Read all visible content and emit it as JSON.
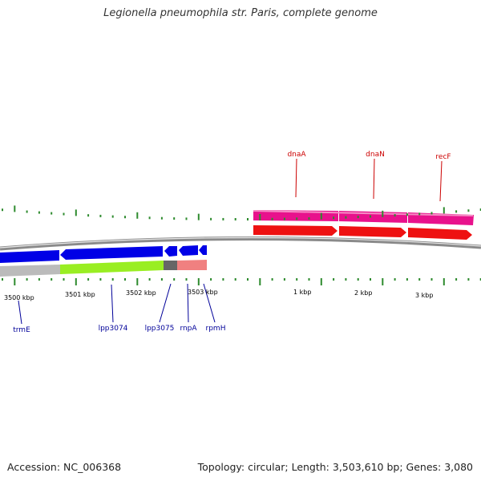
{
  "title": "Legionella pneumophila str. Paris, complete genome",
  "accession": "Accession: NC_006368",
  "summary": "Topology: circular; Length: 3,503,610 bp; Genes: 3,080",
  "colors": {
    "backbone": "#8a8a8a",
    "tick": "#2e8b2e",
    "forward_cds": "#e8128c",
    "reverse_cds": "#0000e6",
    "rna": "#ee1111",
    "gene_label_fwd": "#cc0000",
    "gene_label_rev": "#000099",
    "go_green": "#99ee22",
    "go_grey": "#bbbbbb",
    "go_pink": "#f08080",
    "go_dark": "#666666"
  },
  "ruler_labels": [
    {
      "text": "3500 kbp"
    },
    {
      "text": "3501 kbp"
    },
    {
      "text": "3502 kbp"
    },
    {
      "text": "3503 kbp"
    },
    {
      "text": "1 kbp"
    },
    {
      "text": "2 kbp"
    },
    {
      "text": "3 kbp"
    }
  ],
  "gene_labels": [
    {
      "text": "dnaA",
      "strand": "forward"
    },
    {
      "text": "dnaN",
      "strand": "forward"
    },
    {
      "text": "recF",
      "strand": "forward"
    },
    {
      "text": "trmE",
      "strand": "reverse"
    },
    {
      "text": "lpp3074",
      "strand": "reverse"
    },
    {
      "text": "lpp3075",
      "strand": "reverse"
    },
    {
      "text": "rnpA",
      "strand": "reverse"
    },
    {
      "text": "rpmH",
      "strand": "reverse"
    }
  ]
}
